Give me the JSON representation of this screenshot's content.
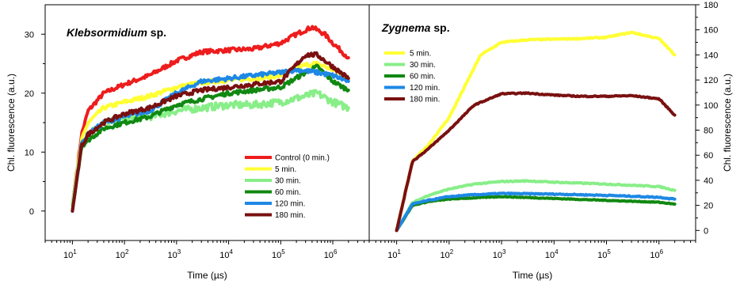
{
  "chart_data": [
    {
      "type": "line",
      "title_parts": [
        {
          "text": "Klebsormidium",
          "italic": true
        },
        {
          "text": " sp.",
          "italic": false
        }
      ],
      "xlabel": "Time (µs)",
      "ylabel": "Chl. fluorescence (a.u.)",
      "xscale": "log",
      "xlim": [
        3,
        5000000
      ],
      "ylim": [
        -5,
        35
      ],
      "yticks": [
        0,
        10,
        20,
        30
      ],
      "xtick_exponents": [
        1,
        2,
        3,
        4,
        5,
        6
      ],
      "legend_position": "bottom-right",
      "series": [
        {
          "name": "Control (0 min.)",
          "color": "#ee1c1c",
          "noise": 0.35,
          "points": [
            [
              10,
              1
            ],
            [
              15,
              13
            ],
            [
              20,
              17
            ],
            [
              40,
              20
            ],
            [
              100,
              21.5
            ],
            [
              300,
              23
            ],
            [
              1000,
              25.5
            ],
            [
              3000,
              27
            ],
            [
              10000,
              27.3
            ],
            [
              30000,
              27.5
            ],
            [
              100000,
              28.5
            ],
            [
              200000,
              30
            ],
            [
              400000,
              31.2
            ],
            [
              700000,
              30
            ],
            [
              1000000,
              28.5
            ],
            [
              2000000,
              26
            ]
          ]
        },
        {
          "name": "5 min.",
          "color": "#ffff33",
          "noise": 0.35,
          "points": [
            [
              10,
              1
            ],
            [
              15,
              12
            ],
            [
              20,
              15
            ],
            [
              40,
              17.5
            ],
            [
              100,
              18.5
            ],
            [
              300,
              19.5
            ],
            [
              1000,
              21
            ],
            [
              3000,
              21.8
            ],
            [
              10000,
              22.2
            ],
            [
              30000,
              22.5
            ],
            [
              100000,
              23
            ],
            [
              300000,
              24.8
            ],
            [
              500000,
              25
            ],
            [
              1000000,
              24
            ],
            [
              2000000,
              22.5
            ]
          ]
        },
        {
          "name": "30 min.",
          "color": "#88ee88",
          "noise": 0.6,
          "points": [
            [
              10,
              1
            ],
            [
              15,
              11
            ],
            [
              20,
              13
            ],
            [
              40,
              15
            ],
            [
              100,
              15.5
            ],
            [
              300,
              16
            ],
            [
              1000,
              17
            ],
            [
              3000,
              17.5
            ],
            [
              10000,
              18
            ],
            [
              30000,
              18
            ],
            [
              100000,
              18.5
            ],
            [
              300000,
              19.5
            ],
            [
              500000,
              20
            ],
            [
              1000000,
              18.5
            ],
            [
              2000000,
              17.5
            ]
          ]
        },
        {
          "name": "60 min.",
          "color": "#118811",
          "noise": 0.35,
          "points": [
            [
              10,
              0
            ],
            [
              15,
              11
            ],
            [
              20,
              12
            ],
            [
              40,
              14
            ],
            [
              100,
              15
            ],
            [
              300,
              16
            ],
            [
              1000,
              18
            ],
            [
              3000,
              19
            ],
            [
              10000,
              20
            ],
            [
              30000,
              20.5
            ],
            [
              100000,
              21
            ],
            [
              300000,
              23.5
            ],
            [
              500000,
              24.5
            ],
            [
              1000000,
              22
            ],
            [
              2000000,
              20.5
            ]
          ]
        },
        {
          "name": "120 min.",
          "color": "#1e88e5",
          "noise": 0.35,
          "points": [
            [
              10,
              0
            ],
            [
              15,
              11.5
            ],
            [
              20,
              13
            ],
            [
              40,
              15
            ],
            [
              100,
              16
            ],
            [
              300,
              17
            ],
            [
              1000,
              20
            ],
            [
              3000,
              22
            ],
            [
              10000,
              22.5
            ],
            [
              30000,
              23
            ],
            [
              100000,
              23.5
            ],
            [
              200000,
              24
            ],
            [
              500000,
              23.5
            ],
            [
              1000000,
              23
            ],
            [
              2000000,
              22
            ]
          ]
        },
        {
          "name": "180 min.",
          "color": "#7a1010",
          "noise": 0.35,
          "points": [
            [
              10,
              0
            ],
            [
              15,
              11
            ],
            [
              20,
              13
            ],
            [
              40,
              15
            ],
            [
              100,
              16.5
            ],
            [
              300,
              17.5
            ],
            [
              1000,
              19.5
            ],
            [
              3000,
              20.5
            ],
            [
              10000,
              21
            ],
            [
              30000,
              21.5
            ],
            [
              100000,
              22
            ],
            [
              300000,
              26.5
            ],
            [
              500000,
              26.5
            ],
            [
              1000000,
              24.5
            ],
            [
              2000000,
              22.5
            ]
          ]
        }
      ]
    },
    {
      "type": "line",
      "title_parts": [
        {
          "text": "Zygnema",
          "italic": true
        },
        {
          "text": " sp.",
          "italic": false
        }
      ],
      "xlabel": "Time (µs)",
      "ylabel": "Chl. fluorescence (a.u.)",
      "xscale": "log",
      "xlim": [
        3,
        5000000
      ],
      "ylim": [
        -8,
        180
      ],
      "yticks": [
        0,
        20,
        40,
        60,
        80,
        100,
        120,
        140,
        160,
        180
      ],
      "xtick_exponents": [
        1,
        2,
        3,
        4,
        5,
        6
      ],
      "legend_position": "top-left",
      "series": [
        {
          "name": "5 min.",
          "color": "#ffff33",
          "noise": 0.5,
          "points": [
            [
              10,
              0
            ],
            [
              20,
              55
            ],
            [
              40,
              68
            ],
            [
              100,
              90
            ],
            [
              200,
              115
            ],
            [
              400,
              140
            ],
            [
              1000,
              150
            ],
            [
              3000,
              152
            ],
            [
              10000,
              152.5
            ],
            [
              30000,
              153
            ],
            [
              100000,
              154
            ],
            [
              300000,
              158
            ],
            [
              1000000,
              153
            ],
            [
              2000000,
              140
            ]
          ]
        },
        {
          "name": "30 min.",
          "color": "#88ee88",
          "noise": 0.4,
          "points": [
            [
              10,
              0
            ],
            [
              20,
              22
            ],
            [
              40,
              28
            ],
            [
              100,
              33
            ],
            [
              300,
              37
            ],
            [
              1000,
              39
            ],
            [
              3000,
              39.5
            ],
            [
              10000,
              38.5
            ],
            [
              100000,
              37
            ],
            [
              1000000,
              35
            ],
            [
              2000000,
              32
            ]
          ]
        },
        {
          "name": "60 min.",
          "color": "#118811",
          "noise": 0.3,
          "points": [
            [
              10,
              0
            ],
            [
              20,
              20
            ],
            [
              40,
              23
            ],
            [
              100,
              25
            ],
            [
              300,
              26
            ],
            [
              1000,
              27
            ],
            [
              10000,
              25.5
            ],
            [
              100000,
              24
            ],
            [
              1000000,
              22.5
            ],
            [
              2000000,
              21
            ]
          ]
        },
        {
          "name": "120 min.",
          "color": "#1e88e5",
          "noise": 0.4,
          "points": [
            [
              10,
              0
            ],
            [
              20,
              21
            ],
            [
              40,
              24
            ],
            [
              100,
              27
            ],
            [
              300,
              28.5
            ],
            [
              1000,
              29.5
            ],
            [
              10000,
              29
            ],
            [
              100000,
              28
            ],
            [
              1000000,
              26.5
            ],
            [
              2000000,
              25
            ]
          ]
        },
        {
          "name": "180 min.",
          "color": "#7a1010",
          "noise": 0.4,
          "points": [
            [
              10,
              0
            ],
            [
              20,
              55
            ],
            [
              40,
              65
            ],
            [
              100,
              80
            ],
            [
              300,
              100
            ],
            [
              1000,
              109
            ],
            [
              3000,
              109.5
            ],
            [
              10000,
              108
            ],
            [
              30000,
              107
            ],
            [
              100000,
              107
            ],
            [
              300000,
              107.5
            ],
            [
              1000000,
              105
            ],
            [
              2000000,
              92
            ]
          ]
        }
      ]
    }
  ]
}
